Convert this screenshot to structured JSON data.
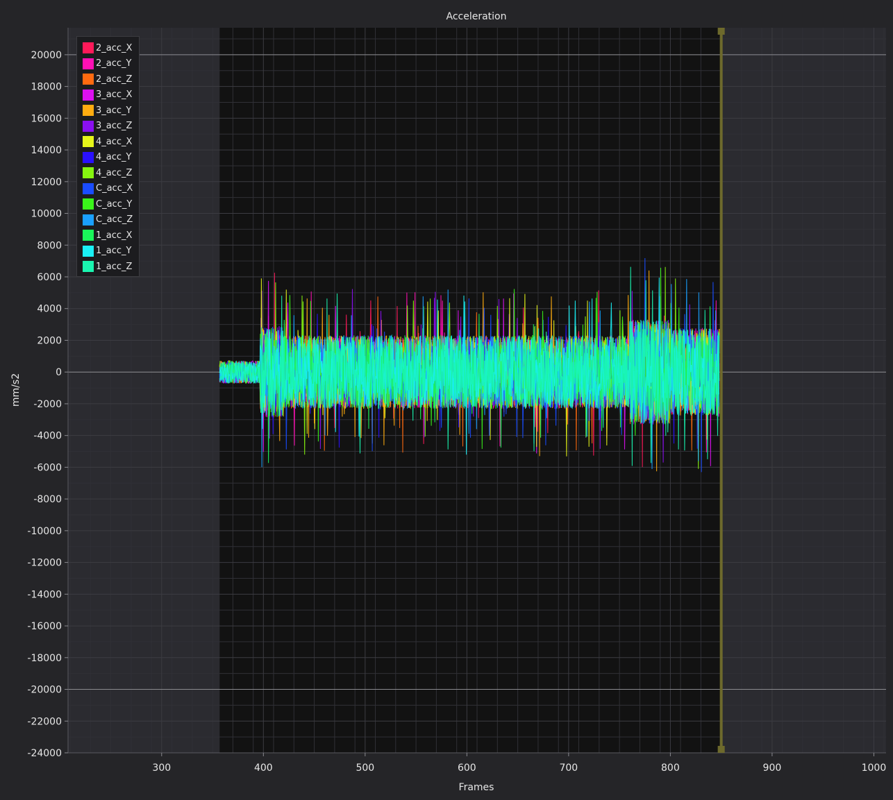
{
  "chart_data": {
    "type": "line",
    "title": "Acceleration",
    "xlabel": "Frames",
    "ylabel": "mm/s2",
    "xlim": [
      208,
      1012
    ],
    "ylim": [
      -24000,
      21700
    ],
    "x_ticks": [
      300,
      400,
      500,
      600,
      700,
      800,
      900,
      1000
    ],
    "y_ticks": [
      20000,
      18000,
      16000,
      14000,
      12000,
      10000,
      8000,
      6000,
      4000,
      2000,
      0,
      -2000,
      -4000,
      -6000,
      -8000,
      -10000,
      -12000,
      -14000,
      -16000,
      -18000,
      -20000,
      -22000,
      -24000
    ],
    "grid": true,
    "legend_position": "top-left",
    "highlighted_range": [
      357,
      850
    ],
    "cursor_frame": 850,
    "reference_lines": [
      20000,
      0,
      -20000
    ],
    "data_range": [
      357,
      848
    ],
    "series": [
      {
        "name": "2_acc_X",
        "color": "#ff1a5a"
      },
      {
        "name": "2_acc_Y",
        "color": "#ff10b4"
      },
      {
        "name": "2_acc_Z",
        "color": "#ff6a10"
      },
      {
        "name": "3_acc_X",
        "color": "#dc10f0"
      },
      {
        "name": "3_acc_Y",
        "color": "#ffac10"
      },
      {
        "name": "3_acc_Z",
        "color": "#8a10f0"
      },
      {
        "name": "4_acc_X",
        "color": "#e6f51a"
      },
      {
        "name": "4_acc_Y",
        "color": "#2a10ff"
      },
      {
        "name": "4_acc_Z",
        "color": "#86f510"
      },
      {
        "name": "C_acc_X",
        "color": "#1a4cff"
      },
      {
        "name": "C_acc_Y",
        "color": "#3af51a"
      },
      {
        "name": "C_acc_Z",
        "color": "#1aa0ff"
      },
      {
        "name": "1_acc_X",
        "color": "#1af55a"
      },
      {
        "name": "1_acc_Y",
        "color": "#1af0f5"
      },
      {
        "name": "1_acc_Z",
        "color": "#1af5b0"
      }
    ]
  }
}
